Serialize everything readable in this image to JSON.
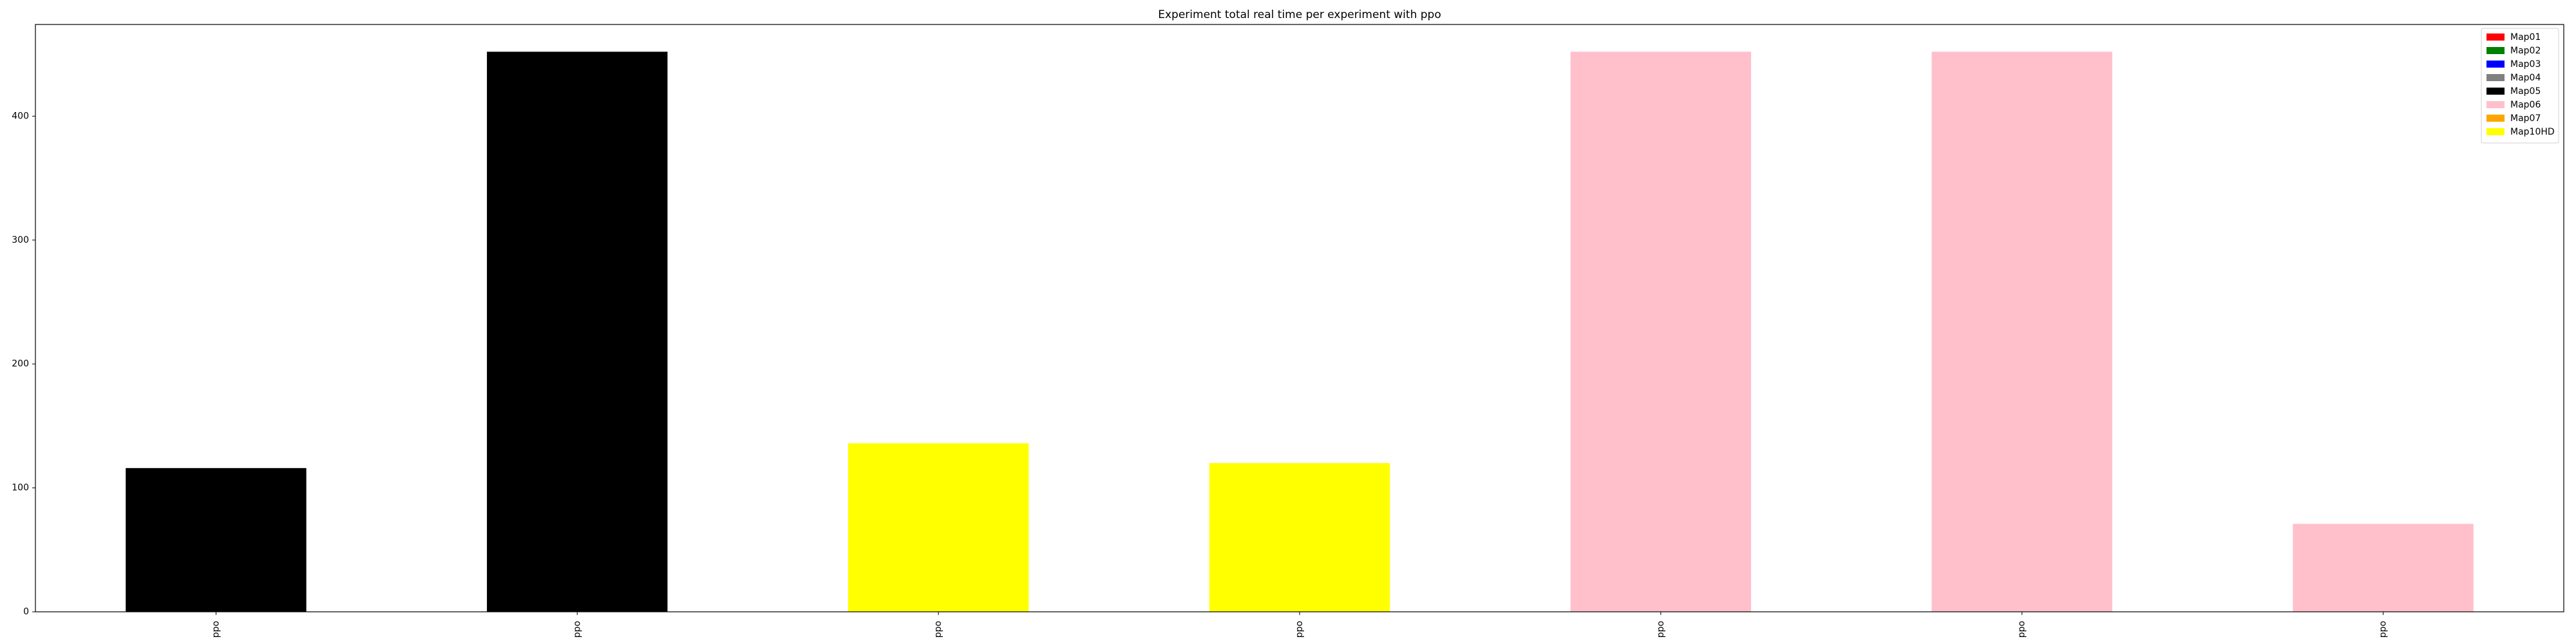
{
  "chart_data": {
    "type": "bar",
    "title": "Experiment total real time per experiment with ppo",
    "xlabel": "",
    "ylabel": "",
    "categories": [
      "ppo",
      "ppo",
      "ppo",
      "ppo",
      "ppo",
      "ppo",
      "ppo"
    ],
    "values": [
      116,
      452,
      136,
      120,
      452,
      452,
      71
    ],
    "bar_series": [
      "Map05",
      "Map05",
      "Map10HD",
      "Map10HD",
      "Map06",
      "Map06",
      "Map06"
    ],
    "ylim": [
      0,
      474
    ],
    "yticks": [
      0,
      100,
      200,
      300,
      400
    ],
    "grid": false,
    "legend": {
      "placement": "top-right",
      "entries": [
        {
          "label": "Map01",
          "color": "#ff0000"
        },
        {
          "label": "Map02",
          "color": "#008000"
        },
        {
          "label": "Map03",
          "color": "#0000ff"
        },
        {
          "label": "Map04",
          "color": "#808080"
        },
        {
          "label": "Map05",
          "color": "#000000"
        },
        {
          "label": "Map06",
          "color": "#ffc0cb"
        },
        {
          "label": "Map07",
          "color": "#ffa500"
        },
        {
          "label": "Map10HD",
          "color": "#ffff00"
        }
      ]
    }
  }
}
